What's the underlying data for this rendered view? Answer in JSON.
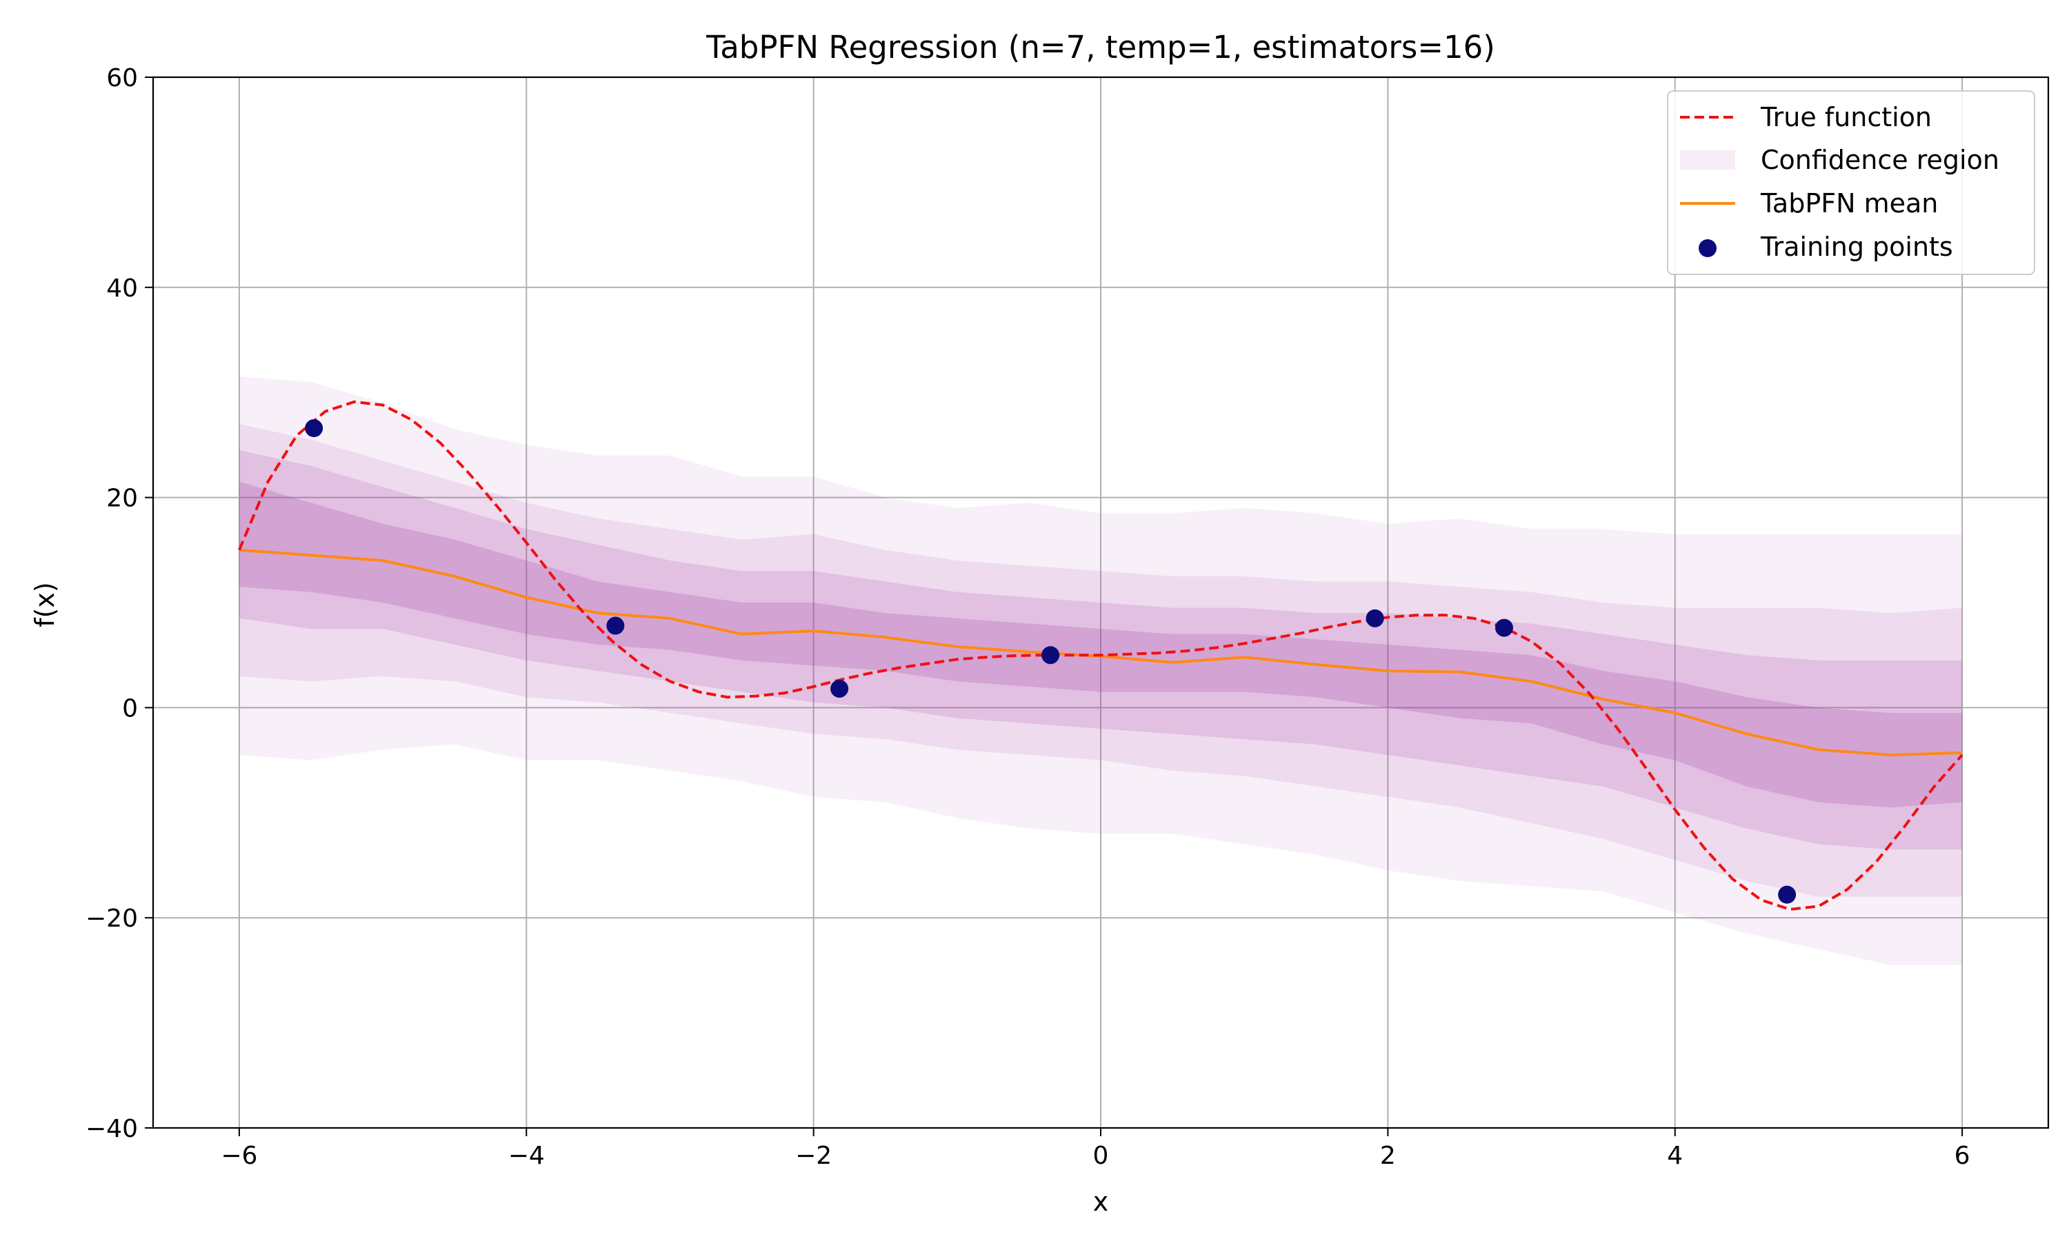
{
  "chart_data": {
    "type": "line",
    "title": "TabPFN Regression (n=7, temp=1, estimators=16)",
    "xlabel": "x",
    "ylabel": "f(x)",
    "xlim": [
      -6.6,
      6.6
    ],
    "ylim": [
      -40,
      60
    ],
    "xticks": [
      -6,
      -4,
      -2,
      0,
      2,
      4,
      6
    ],
    "xtick_labels": [
      "−6",
      "−4",
      "−2",
      "0",
      "2",
      "4",
      "6"
    ],
    "yticks": [
      -40,
      -20,
      0,
      20,
      40,
      60
    ],
    "ytick_labels": [
      "−40",
      "−20",
      "0",
      "20",
      "40",
      "60"
    ],
    "grid": true,
    "legend_position": "top-right",
    "legend": [
      {
        "key": "true",
        "label": "True function"
      },
      {
        "key": "band",
        "label": "Confidence region"
      },
      {
        "key": "mean",
        "label": "TabPFN mean"
      },
      {
        "key": "points",
        "label": "Training points"
      }
    ],
    "colors": {
      "true_function": "#ee1111",
      "mean": "#ff8a14",
      "points": "#0b0b7a",
      "band": "#a23aa6",
      "grid": "#b0b0b0"
    },
    "training_points": {
      "x": [
        -5.48,
        -3.38,
        -1.82,
        -0.35,
        1.91,
        2.81,
        4.78
      ],
      "y": [
        26.6,
        7.8,
        1.8,
        5.0,
        8.5,
        7.6,
        -17.8
      ]
    },
    "true_function": {
      "x": [
        -6.0,
        -5.8,
        -5.6,
        -5.4,
        -5.2,
        -5.0,
        -4.8,
        -4.6,
        -4.4,
        -4.2,
        -4.0,
        -3.8,
        -3.6,
        -3.4,
        -3.2,
        -3.0,
        -2.8,
        -2.6,
        -2.4,
        -2.2,
        -2.0,
        -1.8,
        -1.6,
        -1.4,
        -1.2,
        -1.0,
        -0.8,
        -0.6,
        -0.4,
        -0.2,
        0.0,
        0.2,
        0.4,
        0.6,
        0.8,
        1.0,
        1.2,
        1.4,
        1.6,
        1.8,
        2.0,
        2.2,
        2.4,
        2.6,
        2.8,
        3.0,
        3.2,
        3.4,
        3.6,
        3.8,
        4.0,
        4.2,
        4.4,
        4.6,
        4.8,
        5.0,
        5.2,
        5.4,
        5.6,
        5.8,
        6.0
      ],
      "y": [
        15.0,
        21.5,
        25.9,
        28.2,
        29.1,
        28.8,
        27.4,
        25.2,
        22.3,
        19.1,
        15.7,
        12.2,
        9.0,
        6.3,
        4.1,
        2.5,
        1.5,
        1.0,
        1.1,
        1.4,
        2.0,
        2.7,
        3.3,
        3.8,
        4.2,
        4.6,
        4.8,
        4.95,
        5.0,
        5.0,
        5.0,
        5.1,
        5.2,
        5.4,
        5.7,
        6.1,
        6.6,
        7.1,
        7.7,
        8.2,
        8.6,
        8.8,
        8.8,
        8.5,
        7.7,
        6.3,
        4.2,
        1.4,
        -2.0,
        -5.8,
        -9.7,
        -13.3,
        -16.3,
        -18.3,
        -19.2,
        -18.9,
        -17.3,
        -14.7,
        -11.3,
        -7.6,
        -4.5
      ]
    },
    "x_grid": [
      -6.0,
      -5.5,
      -5.0,
      -4.5,
      -4.0,
      -3.5,
      -3.0,
      -2.5,
      -2.0,
      -1.5,
      -1.0,
      -0.5,
      0.0,
      0.5,
      1.0,
      1.5,
      2.0,
      2.5,
      3.0,
      3.5,
      4.0,
      4.5,
      5.0,
      5.5,
      6.0
    ],
    "mean": [
      15.0,
      14.5,
      14.0,
      12.5,
      10.5,
      9.0,
      8.5,
      7.0,
      7.3,
      6.7,
      5.8,
      5.3,
      4.9,
      4.3,
      4.8,
      4.1,
      3.5,
      3.4,
      2.5,
      0.8,
      -0.5,
      -2.5,
      -4.0,
      -4.5,
      -4.3
    ],
    "band_outer_upper": [
      31.5,
      31.0,
      29.0,
      26.5,
      25.0,
      24.0,
      24.0,
      22.0,
      22.0,
      20.0,
      19.0,
      19.5,
      18.5,
      18.5,
      19.0,
      18.5,
      17.5,
      18.0,
      17.0,
      17.0,
      16.5,
      16.5,
      16.5,
      16.5,
      16.5
    ],
    "band_outer_lower": [
      -4.5,
      -5.0,
      -4.0,
      -3.5,
      -5.0,
      -5.0,
      -6.0,
      -7.0,
      -8.5,
      -9.0,
      -10.5,
      -11.5,
      -12.0,
      -12.0,
      -13.0,
      -14.0,
      -15.5,
      -16.5,
      -17.0,
      -17.5,
      -19.5,
      -21.5,
      -23.0,
      -24.5,
      -24.5
    ],
    "band_mid_upper": [
      27.0,
      25.5,
      23.5,
      21.5,
      19.5,
      18.0,
      17.0,
      16.0,
      16.5,
      15.0,
      14.0,
      13.5,
      13.0,
      12.5,
      12.5,
      12.0,
      12.0,
      11.5,
      11.0,
      10.0,
      9.5,
      9.5,
      9.5,
      9.0,
      9.5
    ],
    "band_mid_lower": [
      3.0,
      2.5,
      3.0,
      2.5,
      1.0,
      0.5,
      -0.5,
      -1.5,
      -2.5,
      -3.0,
      -4.0,
      -4.5,
      -5.0,
      -6.0,
      -6.5,
      -7.5,
      -8.5,
      -9.5,
      -11.0,
      -12.5,
      -14.5,
      -16.5,
      -18.0,
      -18.0,
      -18.0
    ],
    "band_inner_upper": [
      24.5,
      23.0,
      21.0,
      19.0,
      17.0,
      15.5,
      14.0,
      13.0,
      13.0,
      12.0,
      11.0,
      10.5,
      10.0,
      9.5,
      9.5,
      9.0,
      9.0,
      8.5,
      8.0,
      7.0,
      6.0,
      5.0,
      4.5,
      4.5,
      4.5
    ],
    "band_inner_lower": [
      8.5,
      7.5,
      7.5,
      6.0,
      4.5,
      3.5,
      2.5,
      1.5,
      0.5,
      0.0,
      -1.0,
      -1.5,
      -2.0,
      -2.5,
      -3.0,
      -3.5,
      -4.5,
      -5.5,
      -6.5,
      -7.5,
      -9.5,
      -11.5,
      -13.0,
      -13.5,
      -13.5
    ],
    "band_core_upper": [
      21.5,
      19.5,
      17.5,
      16.0,
      14.0,
      12.0,
      11.0,
      10.0,
      10.0,
      9.0,
      8.5,
      8.0,
      7.5,
      7.0,
      7.0,
      6.5,
      6.0,
      5.5,
      5.0,
      3.5,
      2.5,
      1.0,
      0.0,
      -0.5,
      -0.5
    ],
    "band_core_lower": [
      11.5,
      11.0,
      10.0,
      8.5,
      7.0,
      6.0,
      5.5,
      4.5,
      4.0,
      3.5,
      2.5,
      2.0,
      1.5,
      1.5,
      1.5,
      1.0,
      0.0,
      -1.0,
      -1.5,
      -3.5,
      -5.0,
      -7.5,
      -9.0,
      -9.5,
      -9.0
    ]
  }
}
